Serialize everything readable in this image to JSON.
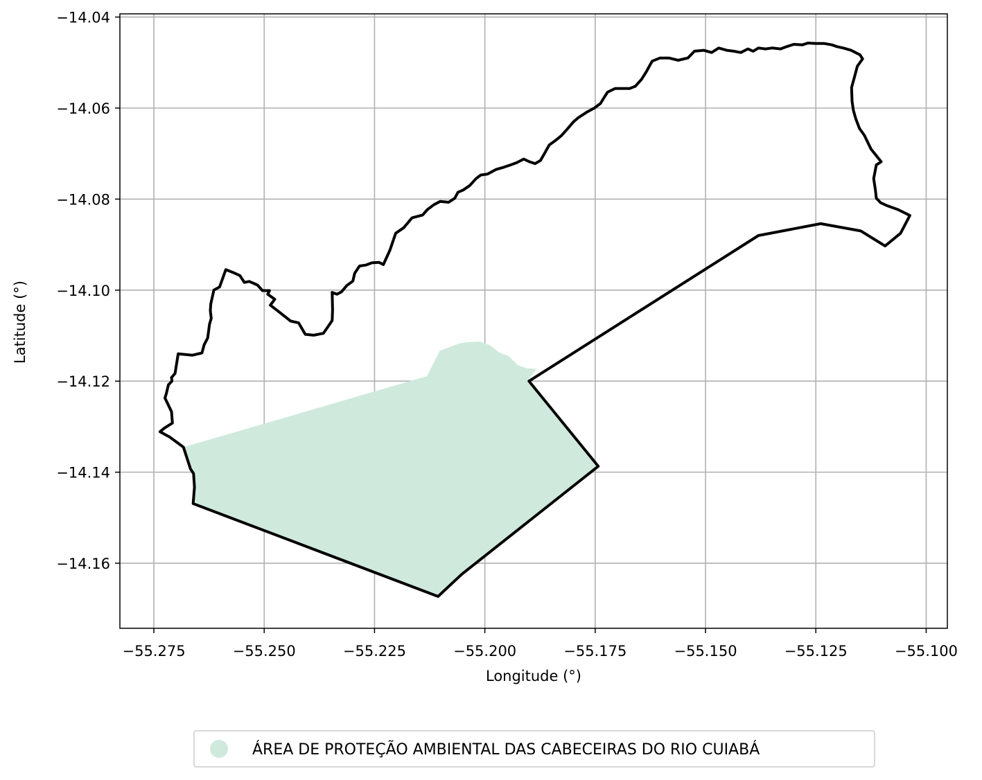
{
  "map": {
    "xlabel": "Longitude (°)",
    "ylabel": "Latitude (°)",
    "xlim": [
      -55.2827,
      -55.0952
    ],
    "ylim": [
      -14.1743,
      -14.0393
    ],
    "grid": true,
    "x_ticks": [
      -55.275,
      -55.25,
      -55.225,
      -55.2,
      -55.175,
      -55.15,
      -55.125,
      -55.1
    ],
    "x_tick_labels": [
      "−55.275",
      "−55.250",
      "−55.225",
      "−55.200",
      "−55.175",
      "−55.150",
      "−55.125",
      "−55.100"
    ],
    "y_ticks": [
      -14.04,
      -14.06,
      -14.08,
      -14.1,
      -14.12,
      -14.14,
      -14.16
    ],
    "y_tick_labels": [
      "−14.04",
      "−14.06",
      "−14.08",
      "−14.10",
      "−14.12",
      "−14.14",
      "−14.16"
    ],
    "colors": {
      "protected_area_fill": "#cfeadd",
      "boundary_stroke": "#000000",
      "grid": "#b0b0b0"
    },
    "legend": {
      "placement": "bottom-center, below axes",
      "items": [
        {
          "label": "ÁREA DE PROTEÇÃO AMBIENTAL DAS CABECEIRAS DO RIO CUIABÁ",
          "color": "#cfeadd"
        }
      ]
    },
    "protected_area_polygon": [
      [
        -55.2683,
        -14.1345
      ],
      [
        -55.2131,
        -14.1189
      ],
      [
        -55.2102,
        -14.1133
      ],
      [
        -55.2058,
        -14.1117
      ],
      [
        -55.2036,
        -14.1114
      ],
      [
        -55.2011,
        -14.1113
      ],
      [
        -55.1989,
        -14.1121
      ],
      [
        -55.1969,
        -14.1136
      ],
      [
        -55.1946,
        -14.1145
      ],
      [
        -55.1935,
        -14.1155
      ],
      [
        -55.1925,
        -14.1165
      ],
      [
        -55.1904,
        -14.1172
      ],
      [
        -55.1883,
        -14.1173
      ],
      [
        -55.1903,
        -14.12
      ],
      [
        -55.1743,
        -14.1387
      ],
      [
        -55.2052,
        -14.1624
      ],
      [
        -55.2106,
        -14.1673
      ],
      [
        -55.2661,
        -14.1469
      ],
      [
        -55.2658,
        -14.1433
      ],
      [
        -55.266,
        -14.1403
      ],
      [
        -55.2667,
        -14.1393
      ],
      [
        -55.2683,
        -14.1345
      ]
    ],
    "boundary_polygon": [
      [
        -55.2683,
        -14.1345
      ],
      [
        -55.2714,
        -14.1323
      ],
      [
        -55.2736,
        -14.1311
      ],
      [
        -55.2726,
        -14.1303
      ],
      [
        -55.2708,
        -14.1292
      ],
      [
        -55.271,
        -14.1267
      ],
      [
        -55.2725,
        -14.1237
      ],
      [
        -55.2722,
        -14.1228
      ],
      [
        -55.2717,
        -14.1208
      ],
      [
        -55.2709,
        -14.12
      ],
      [
        -55.271,
        -14.1192
      ],
      [
        -55.2702,
        -14.1183
      ],
      [
        -55.2695,
        -14.114
      ],
      [
        -55.2663,
        -14.1143
      ],
      [
        -55.2641,
        -14.1138
      ],
      [
        -55.2636,
        -14.112
      ],
      [
        -55.2628,
        -14.1105
      ],
      [
        -55.2626,
        -14.109
      ],
      [
        -55.2624,
        -14.1075
      ],
      [
        -55.262,
        -14.1062
      ],
      [
        -55.2622,
        -14.1045
      ],
      [
        -55.2621,
        -14.103
      ],
      [
        -55.2614,
        -14.1
      ],
      [
        -55.2601,
        -14.0993
      ],
      [
        -55.2587,
        -14.0955
      ],
      [
        -55.2571,
        -14.0961
      ],
      [
        -55.2555,
        -14.0968
      ],
      [
        -55.2545,
        -14.0983
      ],
      [
        -55.2534,
        -14.0981
      ],
      [
        -55.2524,
        -14.0985
      ],
      [
        -55.2515,
        -14.0989
      ],
      [
        -55.2504,
        -14.1001
      ],
      [
        -55.2488,
        -14.1001
      ],
      [
        -55.2492,
        -14.1009
      ],
      [
        -55.2476,
        -14.102
      ],
      [
        -55.2486,
        -14.1033
      ],
      [
        -55.2466,
        -14.1048
      ],
      [
        -55.244,
        -14.1068
      ],
      [
        -55.2422,
        -14.1072
      ],
      [
        -55.2407,
        -14.1097
      ],
      [
        -55.2388,
        -14.1099
      ],
      [
        -55.2366,
        -14.1095
      ],
      [
        -55.2346,
        -14.1067
      ],
      [
        -55.2345,
        -14.1043
      ],
      [
        -55.2346,
        -14.1005
      ],
      [
        -55.2335,
        -14.1009
      ],
      [
        -55.2325,
        -14.1004
      ],
      [
        -55.2313,
        -14.099
      ],
      [
        -55.2299,
        -14.098
      ],
      [
        -55.2295,
        -14.0963
      ],
      [
        -55.2284,
        -14.0947
      ],
      [
        -55.227,
        -14.0945
      ],
      [
        -55.2256,
        -14.094
      ],
      [
        -55.224,
        -14.0939
      ],
      [
        -55.223,
        -14.0944
      ],
      [
        -55.2215,
        -14.0912
      ],
      [
        -55.2202,
        -14.0875
      ],
      [
        -55.2184,
        -14.0863
      ],
      [
        -55.2165,
        -14.0841
      ],
      [
        -55.2141,
        -14.0835
      ],
      [
        -55.213,
        -14.0823
      ],
      [
        -55.2115,
        -14.0812
      ],
      [
        -55.2101,
        -14.0805
      ],
      [
        -55.2082,
        -14.0807
      ],
      [
        -55.2068,
        -14.0798
      ],
      [
        -55.2061,
        -14.0785
      ],
      [
        -55.2049,
        -14.078
      ],
      [
        -55.2034,
        -14.077
      ],
      [
        -55.202,
        -14.0755
      ],
      [
        -55.2009,
        -14.0747
      ],
      [
        -55.1994,
        -14.0745
      ],
      [
        -55.1975,
        -14.0735
      ],
      [
        -55.1957,
        -14.073
      ],
      [
        -55.1942,
        -14.0725
      ],
      [
        -55.1928,
        -14.072
      ],
      [
        -55.1912,
        -14.0712
      ],
      [
        -55.1899,
        -14.0718
      ],
      [
        -55.1886,
        -14.0722
      ],
      [
        -55.1874,
        -14.0715
      ],
      [
        -55.1865,
        -14.07
      ],
      [
        -55.1854,
        -14.0681
      ],
      [
        -55.1841,
        -14.0672
      ],
      [
        -55.1827,
        -14.0661
      ],
      [
        -55.1813,
        -14.0646
      ],
      [
        -55.18,
        -14.0631
      ],
      [
        -55.1788,
        -14.0621
      ],
      [
        -55.1769,
        -14.0609
      ],
      [
        -55.1752,
        -14.06
      ],
      [
        -55.1738,
        -14.059
      ],
      [
        -55.173,
        -14.0577
      ],
      [
        -55.1722,
        -14.0565
      ],
      [
        -55.1705,
        -14.0557
      ],
      [
        -55.1693,
        -14.0557
      ],
      [
        -55.1672,
        -14.0557
      ],
      [
        -55.1659,
        -14.0552
      ],
      [
        -55.1645,
        -14.0537
      ],
      [
        -55.1634,
        -14.052
      ],
      [
        -55.1621,
        -14.0497
      ],
      [
        -55.1603,
        -14.049
      ],
      [
        -55.1583,
        -14.049
      ],
      [
        -55.1562,
        -14.0495
      ],
      [
        -55.154,
        -14.049
      ],
      [
        -55.1525,
        -14.0475
      ],
      [
        -55.1504,
        -14.0473
      ],
      [
        -55.1486,
        -14.0478
      ],
      [
        -55.147,
        -14.0468
      ],
      [
        -55.1452,
        -14.0473
      ],
      [
        -55.1436,
        -14.0475
      ],
      [
        -55.142,
        -14.0478
      ],
      [
        -55.1404,
        -14.047
      ],
      [
        -55.1392,
        -14.0475
      ],
      [
        -55.138,
        -14.0468
      ],
      [
        -55.1364,
        -14.047
      ],
      [
        -55.1349,
        -14.0468
      ],
      [
        -55.133,
        -14.047
      ],
      [
        -55.1316,
        -14.0465
      ],
      [
        -55.13,
        -14.046
      ],
      [
        -55.128,
        -14.0461
      ],
      [
        -55.1268,
        -14.0457
      ],
      [
        -55.125,
        -14.0458
      ],
      [
        -55.1232,
        -14.0458
      ],
      [
        -55.1214,
        -14.0461
      ],
      [
        -55.1202,
        -14.0465
      ],
      [
        -55.1188,
        -14.0468
      ],
      [
        -55.117,
        -14.0473
      ],
      [
        -55.115,
        -14.0483
      ],
      [
        -55.1144,
        -14.0492
      ],
      [
        -55.1156,
        -14.0508
      ],
      [
        -55.1162,
        -14.053
      ],
      [
        -55.1169,
        -14.0555
      ],
      [
        -55.1168,
        -14.0585
      ],
      [
        -55.1165,
        -14.0605
      ],
      [
        -55.1159,
        -14.0625
      ],
      [
        -55.1151,
        -14.0645
      ],
      [
        -55.114,
        -14.066
      ],
      [
        -55.1125,
        -14.069
      ],
      [
        -55.1102,
        -14.0718
      ],
      [
        -55.1113,
        -14.0725
      ],
      [
        -55.1119,
        -14.0755
      ],
      [
        -55.1115,
        -14.078
      ],
      [
        -55.1113,
        -14.0798
      ],
      [
        -55.1103,
        -14.0808
      ],
      [
        -55.1087,
        -14.0815
      ],
      [
        -55.1064,
        -14.0823
      ],
      [
        -55.1037,
        -14.0836
      ],
      [
        -55.1058,
        -14.0875
      ],
      [
        -55.1093,
        -14.0903
      ],
      [
        -55.1148,
        -14.087
      ],
      [
        -55.1239,
        -14.0854
      ],
      [
        -55.138,
        -14.088
      ],
      [
        -55.19,
        -14.12
      ],
      [
        -55.1743,
        -14.1387
      ],
      [
        -55.2052,
        -14.1624
      ],
      [
        -55.2106,
        -14.1673
      ],
      [
        -55.2661,
        -14.1469
      ],
      [
        -55.2658,
        -14.1433
      ],
      [
        -55.266,
        -14.1403
      ],
      [
        -55.2667,
        -14.1393
      ],
      [
        -55.2683,
        -14.1345
      ]
    ]
  }
}
